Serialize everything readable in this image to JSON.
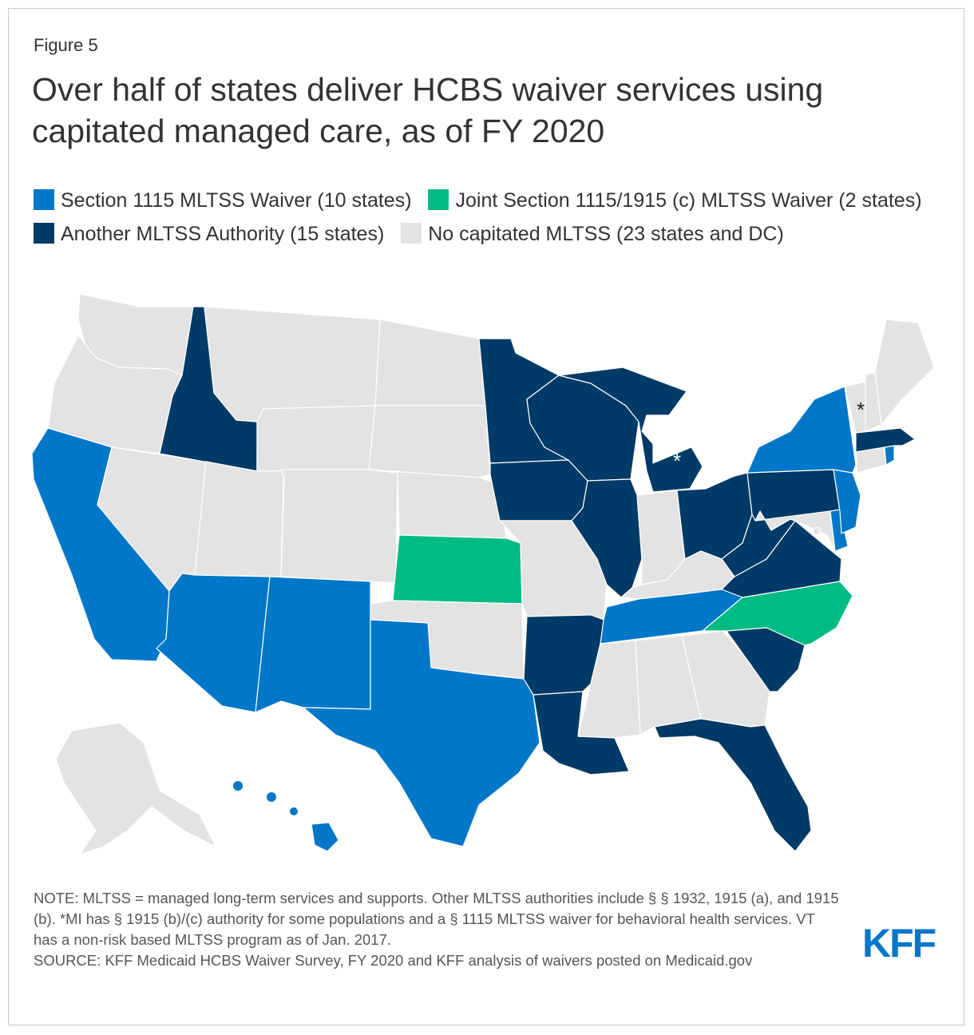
{
  "figure_label": "Figure 5",
  "title": "Over half of states deliver HCBS waiver services using capitated managed care, as of FY 2020",
  "legend": [
    {
      "label": "Section 1115 MLTSS Waiver (10 states)",
      "color": "#0077c8"
    },
    {
      "label": "Joint Section 1115/1915 (c) MLTSS Waiver (2 states)",
      "color": "#00bb84"
    },
    {
      "label": "Another MLTSS Authority (15 states)",
      "color": "#003a66"
    },
    {
      "label": "No capitated MLTSS (23 states and DC)",
      "color": "#e3e3e3"
    }
  ],
  "map": {
    "categories": {
      "s1115": [
        "CA",
        "AZ",
        "NM",
        "TX",
        "TN",
        "NY",
        "NJ",
        "DE",
        "RI",
        "HI"
      ],
      "joint": [
        "KS",
        "NC"
      ],
      "other": [
        "ID",
        "MN",
        "WI",
        "IA",
        "IL",
        "MI",
        "OH",
        "PA",
        "VA",
        "WV",
        "AR",
        "LA",
        "SC",
        "FL",
        "MA"
      ],
      "none": [
        "WA",
        "OR",
        "NV",
        "UT",
        "MT",
        "WY",
        "CO",
        "ND",
        "SD",
        "NE",
        "OK",
        "MO",
        "IN",
        "KY",
        "MS",
        "AL",
        "GA",
        "MD",
        "VT",
        "NH",
        "ME",
        "CT",
        "AK",
        "DC"
      ]
    },
    "annotations": [
      {
        "state": "MI",
        "marker": "*"
      },
      {
        "state": "VT",
        "marker": "*"
      }
    ]
  },
  "notes": [
    "NOTE: MLTSS = managed long-term services and supports. Other MLTSS authorities include § § 1932, 1915 (a), and 1915 (b). *MI has § 1915 (b)/(c) authority for some populations and a § 1115 MLTSS waiver for behavioral health services. VT has a non-risk based MLTSS program as of Jan. 2017.",
    "SOURCE: KFF Medicaid HCBS Waiver Survey, FY 2020 and KFF analysis of waivers posted on Medicaid.gov"
  ],
  "logo_text": "KFF"
}
